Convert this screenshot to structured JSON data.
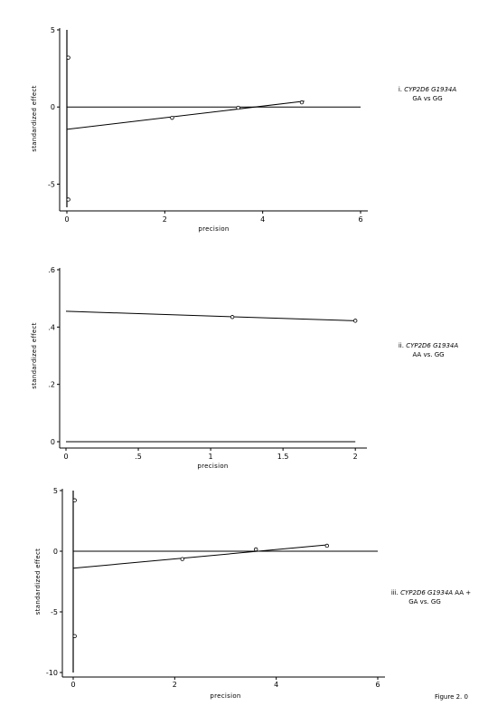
{
  "figure_label": "Figure 2. 0",
  "chart_data": [
    {
      "type": "scatter",
      "xlabel": "precision",
      "ylabel": "standardized effect",
      "xlim": [
        0,
        6
      ],
      "ylim": [
        -6.5,
        5
      ],
      "xticks": [
        {
          "v": 0,
          "t": "0"
        },
        {
          "v": 2,
          "t": "2"
        },
        {
          "v": 4,
          "t": "4"
        },
        {
          "v": 6,
          "t": "6"
        }
      ],
      "yticks": [
        {
          "v": 5,
          "t": "5"
        },
        {
          "v": 0,
          "t": "0"
        },
        {
          "v": -5,
          "t": "-5"
        }
      ],
      "points": [
        {
          "x": 0.03,
          "y": 3.2
        },
        {
          "x": 0.03,
          "y": -6.0
        },
        {
          "x": 2.15,
          "y": -0.7
        },
        {
          "x": 3.5,
          "y": -0.05
        },
        {
          "x": 4.8,
          "y": 0.3
        }
      ],
      "fit_line": {
        "x": [
          0,
          4.85
        ],
        "y": [
          -1.45,
          0.38
        ]
      },
      "zero_line": {
        "x": [
          0,
          6
        ],
        "y": 0
      },
      "caption": {
        "roman": "i. ",
        "gene": "CYP2D6 G1934A",
        "comparison": "GA vs GG"
      }
    },
    {
      "type": "scatter",
      "xlabel": "precision",
      "ylabel": "standardized effect",
      "xlim": [
        0,
        2.03
      ],
      "ylim": [
        0,
        0.6
      ],
      "xticks": [
        {
          "v": 0,
          "t": "0"
        },
        {
          "v": 0.5,
          "t": ".5"
        },
        {
          "v": 1,
          "t": "1"
        },
        {
          "v": 1.5,
          "t": "1.5"
        },
        {
          "v": 2,
          "t": "2"
        }
      ],
      "yticks": [
        {
          "v": 0.6,
          "t": ".6"
        },
        {
          "v": 0.4,
          "t": ".4"
        },
        {
          "v": 0.2,
          "t": ".2"
        },
        {
          "v": 0,
          "t": "0"
        }
      ],
      "points": [
        {
          "x": 1.15,
          "y": 0.435
        },
        {
          "x": 2.0,
          "y": 0.422
        }
      ],
      "fit_line": {
        "x": [
          0,
          2.0
        ],
        "y": [
          0.455,
          0.422
        ]
      },
      "zero_line": {
        "x": [
          0,
          2.0
        ],
        "y": 0
      },
      "caption": {
        "roman": "ii. ",
        "gene": "CYP2D6 G1934A",
        "comparison": "AA vs. GG"
      }
    },
    {
      "type": "scatter",
      "xlabel": "precision",
      "ylabel": "standardized effect",
      "xlim": [
        0,
        6
      ],
      "ylim": [
        -10,
        5
      ],
      "xticks": [
        {
          "v": 0,
          "t": "0"
        },
        {
          "v": 2,
          "t": "2"
        },
        {
          "v": 4,
          "t": "4"
        },
        {
          "v": 6,
          "t": "6"
        }
      ],
      "yticks": [
        {
          "v": 5,
          "t": "5"
        },
        {
          "v": 0,
          "t": "0"
        },
        {
          "v": -5,
          "t": "-5"
        },
        {
          "v": -10,
          "t": "-10"
        }
      ],
      "points": [
        {
          "x": 0.03,
          "y": 4.2
        },
        {
          "x": 0.03,
          "y": -7.0
        },
        {
          "x": 2.15,
          "y": -0.65
        },
        {
          "x": 3.6,
          "y": 0.15
        },
        {
          "x": 5.0,
          "y": 0.45
        }
      ],
      "fit_line": {
        "x": [
          0,
          5.0
        ],
        "y": [
          -1.4,
          0.52
        ]
      },
      "zero_line": {
        "x": [
          0,
          6
        ],
        "y": 0
      },
      "caption": {
        "roman": "iii. ",
        "gene": "CYP2D6 G1934A",
        "comparison_line1": " AA +",
        "comparison_line2": "GA vs. GG"
      }
    }
  ]
}
